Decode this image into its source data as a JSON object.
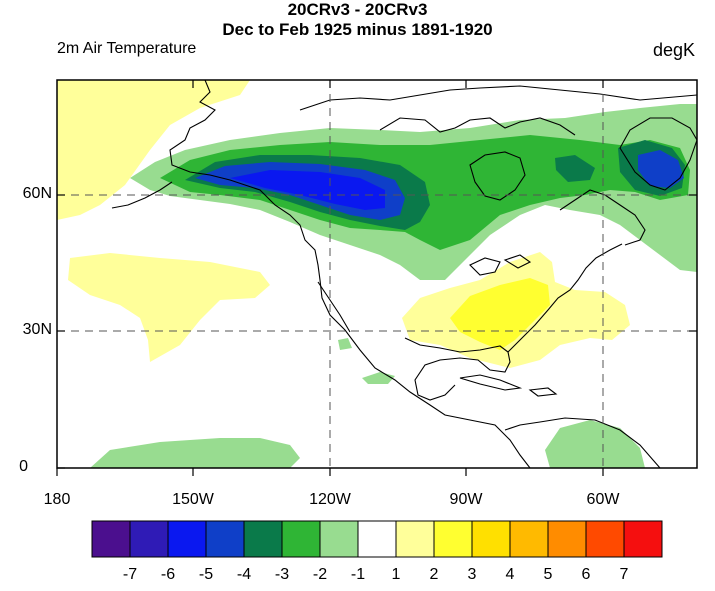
{
  "titles": {
    "line1": "20CRv3 - 20CRv3",
    "line2": "Dec to Feb 1925 minus 1891-1920",
    "left_label": "2m Air Temperature",
    "right_label": "degK"
  },
  "axes": {
    "y_ticks": [
      "60N",
      "30N",
      "0"
    ],
    "x_ticks": [
      "180",
      "150W",
      "120W",
      "90W",
      "60W"
    ]
  },
  "colorbar": {
    "labels": [
      "-7",
      "-6",
      "-5",
      "-4",
      "-3",
      "-2",
      "-1",
      "1",
      "2",
      "3",
      "4",
      "5",
      "6",
      "7"
    ],
    "colors": [
      "#4b0f8e",
      "#2f1bb6",
      "#0a18f0",
      "#0f3fc8",
      "#0a7a4a",
      "#2fb535",
      "#98dc90",
      "#ffffff",
      "#ffff9a",
      "#ffff30",
      "#ffe000",
      "#ffba00",
      "#ff8c00",
      "#ff4a00",
      "#f50f0f"
    ]
  },
  "colors": {
    "light_green": "#98dc90",
    "green": "#2fb535",
    "dark_green": "#0a7a4a",
    "blue": "#0f3fc8",
    "bright_blue": "#0a18f0",
    "light_yellow": "#ffff9a",
    "yellow": "#ffff30"
  }
}
